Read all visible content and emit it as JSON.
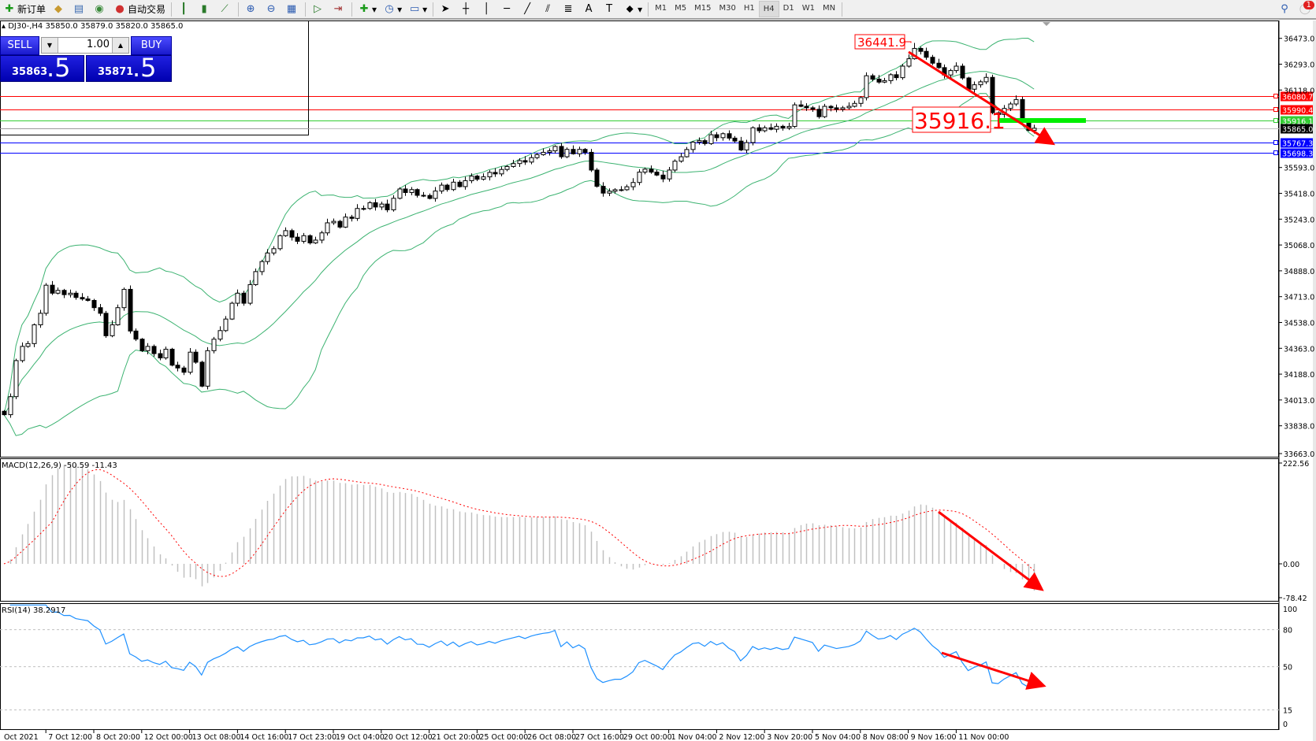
{
  "toolbar": {
    "new_order_label": "新订单",
    "auto_trading_label": "自动交易",
    "icons": [
      "new-order-icon",
      "market-watch-icon",
      "navigator-icon",
      "signals-icon",
      "auto-trading-icon",
      "bar-chart-icon",
      "candlestick-icon",
      "line-chart-icon",
      "zoom-in-icon",
      "zoom-out-icon",
      "tile-windows-icon",
      "auto-scroll-icon",
      "chart-shift-icon",
      "indicators-icon",
      "periods-icon",
      "templates-icon",
      "cursor-icon",
      "crosshair-icon",
      "vertical-line-icon",
      "horizontal-line-icon",
      "trendline-icon",
      "equidistant-channel-icon",
      "fibonacci-icon",
      "text-icon",
      "text-label-icon",
      "arrows-icon",
      "search-icon",
      "notifications-icon"
    ],
    "timeframes": [
      "M1",
      "M5",
      "M15",
      "M30",
      "H1",
      "H4",
      "D1",
      "W1",
      "MN"
    ],
    "active_timeframe": "H4",
    "notification_count": "1"
  },
  "symbol_header": "DJ30-,H4  35850.0 35879.0 35820.0 35865.0",
  "one_click": {
    "sell_label": "SELL",
    "buy_label": "BUY",
    "lot": "1.00",
    "sell_price_main": "35863",
    "sell_price_tail": ".5",
    "buy_price_main": "35871",
    "buy_price_tail": ".5"
  },
  "colors": {
    "bull": "#ffffff",
    "bear": "#000000",
    "bands": "#3cb371",
    "macd_hist": "#c0c0c0",
    "macd_signal": "#ff0000",
    "rsi": "#1e90ff",
    "arrow": "#ff0000"
  },
  "chart_data": {
    "type": "candlestick",
    "symbol": "DJ30-",
    "timeframe": "H4",
    "first_open": 33950,
    "closes": [
      33927,
      34049,
      34293,
      34389,
      34408,
      34535,
      34613,
      34803,
      34749,
      34768,
      34739,
      34749,
      34720,
      34710,
      34700,
      34651,
      34613,
      34461,
      34535,
      34651,
      34775,
      34493,
      34438,
      34360,
      34389,
      34340,
      34311,
      34370,
      34262,
      34243,
      34214,
      34350,
      34282,
      34120,
      34360,
      34438,
      34496,
      34574,
      34681,
      34749,
      34681,
      34807,
      34895,
      34963,
      35021,
      35050,
      35138,
      35172,
      35128,
      35100,
      35138,
      35089,
      35108,
      35157,
      35225,
      35235,
      35196,
      35264,
      35255,
      35322,
      35322,
      35361,
      35332,
      35352,
      35313,
      35391,
      35454,
      35430,
      35450,
      35411,
      35410,
      35390,
      35440,
      35480,
      35450,
      35500,
      35470,
      35510,
      35541,
      35520,
      35536,
      35566,
      35556,
      35586,
      35606,
      35626,
      35646,
      35636,
      35666,
      35686,
      35702,
      35712,
      35742,
      35672,
      35722,
      35692,
      35722,
      35702,
      35582,
      35472,
      35426,
      35439,
      35449,
      35449,
      35469,
      35498,
      35568,
      35588,
      35568,
      35548,
      35522,
      35582,
      35642,
      35672,
      35721,
      35771,
      35781,
      35761,
      35821,
      35801,
      35828,
      35798,
      35778,
      35718,
      35768,
      35868,
      35848,
      35868,
      35858,
      35878,
      35867,
      35877,
      36023,
      36013,
      36003,
      35993,
      35943,
      36013,
      36003,
      35993,
      36003,
      36013,
      36033,
      36072,
      36220,
      36197,
      36177,
      36187,
      36227,
      36207,
      36285,
      36335,
      36405,
      36385,
      36345,
      36305,
      36275,
      36225,
      36255,
      36285,
      36205,
      36129,
      36159,
      36179,
      36209,
      35970,
      35958,
      35999,
      36029,
      36059,
      35910,
      35850,
      35865
    ],
    "high_marker": {
      "index": 152,
      "value": 36441.9,
      "label": "36441.9"
    },
    "indicators": {
      "bollinger": {
        "period": 20,
        "deviation": 2
      },
      "macd": {
        "label": "MACD(12,26,9) -50.59 -11.43",
        "fast": 12,
        "slow": 26,
        "signal": 9,
        "ylim": [
          -78.42,
          222.56
        ],
        "ticks": [
          "222.56",
          "0.00",
          "-78.42"
        ]
      },
      "rsi": {
        "label": "RSI(14) 38.2917",
        "period": 14,
        "levels": [
          80,
          50,
          15
        ],
        "ticks": [
          "100",
          "80",
          "50",
          "15",
          "0"
        ]
      }
    },
    "price_ticks": [
      "36473.0",
      "36293.0",
      "36118.0",
      "35593.0",
      "35418.0",
      "35243.0",
      "35068.0",
      "34888.0",
      "34713.0",
      "34538.0",
      "34363.0",
      "34188.0",
      "34013.0",
      "33838.0",
      "33663.0"
    ],
    "hlines": [
      {
        "price": 36080.7,
        "label": "36080.7",
        "color": "#ff0000"
      },
      {
        "price": 35990.4,
        "label": "35990.4",
        "color": "#ff0000"
      },
      {
        "price": 35916.1,
        "label": "35916.1",
        "color": "#32cd32"
      },
      {
        "price": 35865.0,
        "label": "35865.0",
        "color": "#c0c0c0",
        "box": "#000000"
      },
      {
        "price": 35767.3,
        "label": "35767.3",
        "color": "#0000ff"
      },
      {
        "price": 35698.3,
        "label": "35698.3",
        "color": "#0000ff"
      }
    ],
    "annotation_big": "35916.1",
    "time_labels": [
      "Oct 2021",
      "7 Oct 12:00",
      "8 Oct 20:00",
      "12 Oct 00:00",
      "13 Oct 08:00",
      "14 Oct 16:00",
      "17 Oct 23:00",
      "19 Oct 04:00",
      "20 Oct 12:00",
      "21 Oct 20:00",
      "25 Oct 00:00",
      "26 Oct 08:00",
      "27 Oct 16:00",
      "29 Oct 00:00",
      "1 Nov 04:00",
      "2 Nov 12:00",
      "3 Nov 20:00",
      "5 Nov 04:00",
      "8 Nov 08:00",
      "9 Nov 16:00",
      "11 Nov 00:00"
    ]
  }
}
